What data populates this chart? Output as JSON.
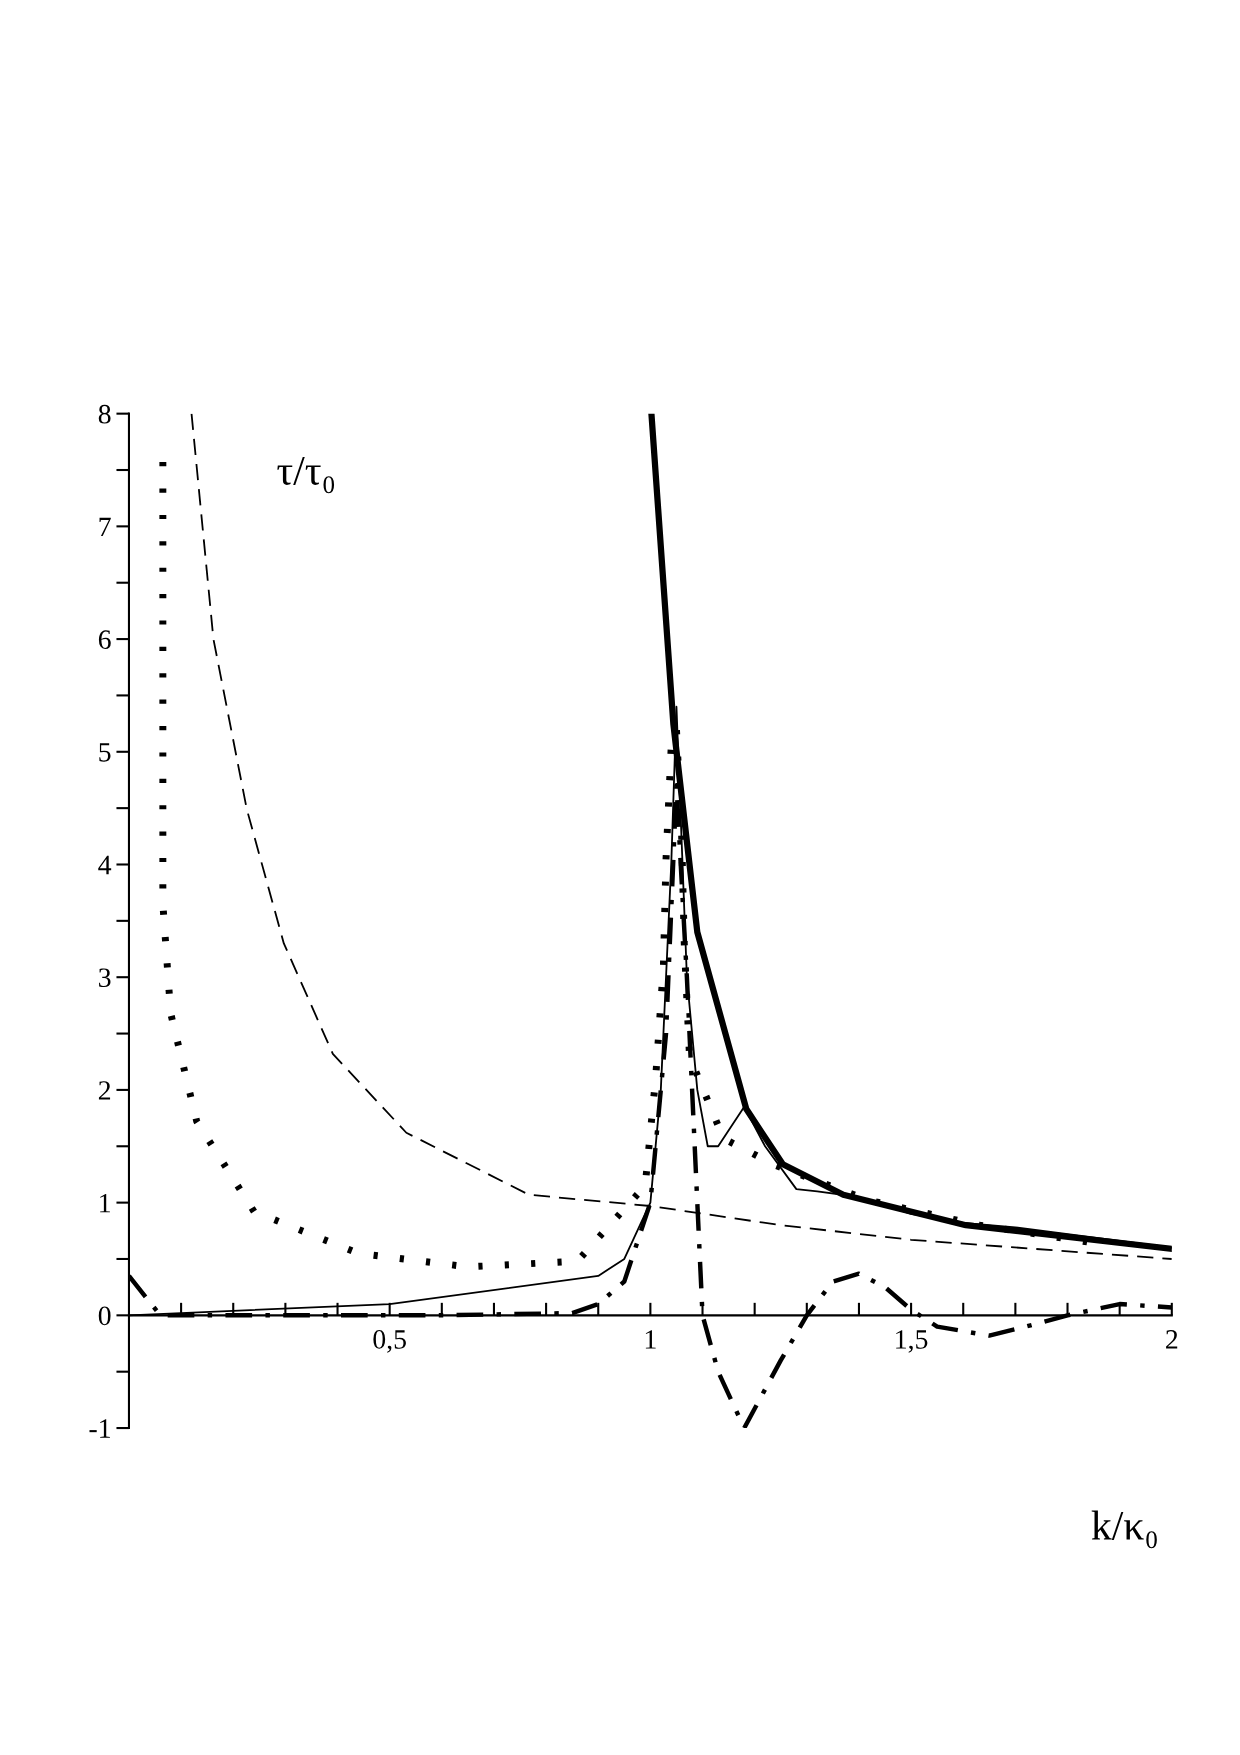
{
  "chart_data": {
    "type": "line",
    "xlabel": "k/κ₀",
    "ylabel": "τ/τ₀",
    "xlim": [
      0,
      2
    ],
    "ylim": [
      -1,
      8
    ],
    "xticks": [
      {
        "value": 0.1,
        "label": null
      },
      {
        "value": 0.2,
        "label": null
      },
      {
        "value": 0.3,
        "label": null
      },
      {
        "value": 0.4,
        "label": null
      },
      {
        "value": 0.5,
        "label": "0,5"
      },
      {
        "value": 0.6,
        "label": null
      },
      {
        "value": 0.7,
        "label": null
      },
      {
        "value": 0.8,
        "label": null
      },
      {
        "value": 0.9,
        "label": null
      },
      1,
      {
        "value": 1.1,
        "label": null
      },
      {
        "value": 1.2,
        "label": null
      },
      {
        "value": 1.3,
        "label": null
      },
      {
        "value": 1.4,
        "label": null
      },
      {
        "value": 1.5,
        "label": "1,5"
      },
      {
        "value": 1.6,
        "label": null
      },
      {
        "value": 1.7,
        "label": null
      },
      {
        "value": 1.8,
        "label": null
      },
      {
        "value": 1.9,
        "label": null
      },
      2
    ],
    "yticks": [
      -1,
      {
        "value": -0.5,
        "label": null
      },
      0,
      {
        "value": 0.5,
        "label": null
      },
      1,
      {
        "value": 1.5,
        "label": null
      },
      2,
      {
        "value": 2.5,
        "label": null
      },
      3,
      {
        "value": 3.5,
        "label": null
      },
      4,
      {
        "value": 4.5,
        "label": null
      },
      5,
      {
        "value": 5.5,
        "label": null
      },
      6,
      {
        "value": 6.5,
        "label": null
      },
      7,
      {
        "value": 7.5,
        "label": null
      },
      8
    ],
    "grid": false,
    "series": [
      {
        "color": "#000000",
        "line_style": "dashed",
        "x": [
          0.12,
          0.162,
          0.226,
          0.297,
          0.391,
          0.532,
          0.767,
          1.0,
          1.25,
          1.5,
          2.0
        ],
        "values": [
          8.0,
          6.0,
          4.49,
          3.3,
          2.32,
          1.62,
          1.07,
          0.97,
          0.8,
          0.67,
          0.5
        ]
      },
      {
        "color": "#000000",
        "line_style": "solid",
        "x": [
          1.002,
          1.044,
          1.09,
          1.184,
          1.254,
          1.37,
          1.605,
          2.0
        ],
        "values": [
          8.0,
          5.25,
          3.4,
          1.83,
          1.34,
          1.07,
          0.8,
          0.59
        ]
      },
      {
        "color": "#000000",
        "line_style": "solid",
        "x": [
          0.0,
          0.5,
          0.9,
          0.95,
          1.0,
          1.02,
          1.04,
          1.05,
          1.07,
          1.09,
          1.11,
          1.13,
          1.18,
          1.22,
          1.28,
          1.32,
          1.4,
          1.5,
          1.6,
          1.7,
          2.0
        ],
        "values": [
          0.0,
          0.1,
          0.35,
          0.5,
          1.0,
          2.0,
          4.0,
          5.4,
          3.0,
          2.0,
          1.5,
          1.5,
          1.85,
          1.5,
          1.12,
          1.1,
          1.05,
          0.9,
          0.82,
          0.78,
          0.6
        ]
      },
      {
        "color": "#000000",
        "line_style": "dashdot",
        "x": [
          0.0,
          0.06,
          0.3,
          0.6,
          0.85,
          0.9,
          0.95,
          1.0,
          1.03,
          1.05,
          1.07,
          1.09,
          1.1,
          1.13,
          1.18,
          1.25,
          1.3,
          1.35,
          1.4,
          1.45,
          1.5,
          1.55,
          1.65,
          1.72,
          1.8,
          1.9,
          2.0
        ],
        "values": [
          0.35,
          0.0,
          0.0,
          0.0,
          0.02,
          0.1,
          0.3,
          1.0,
          2.5,
          4.7,
          3.0,
          1.0,
          0.0,
          -0.5,
          -1.0,
          -0.4,
          0.0,
          0.3,
          0.37,
          0.25,
          0.05,
          -0.1,
          -0.18,
          -0.1,
          0.0,
          0.1,
          0.07
        ]
      },
      {
        "color": "#000000",
        "line_style": "dotted",
        "x": [
          0.065,
          0.065,
          0.065,
          0.065,
          0.065,
          0.08,
          0.13,
          0.24,
          0.44,
          0.65,
          0.86,
          0.99,
          1.01,
          1.025,
          1.03,
          1.04,
          1.05,
          1.06,
          1.065,
          1.075,
          1.14,
          1.24,
          1.42,
          1.63,
          1.84
        ],
        "values": [
          7.57,
          6.58,
          5.6,
          4.62,
          3.65,
          2.68,
          1.72,
          0.92,
          0.55,
          0.43,
          0.48,
          1.15,
          2.1,
          3.1,
          4.05,
          5.05,
          5.2,
          4.25,
          3.3,
          2.3,
          1.57,
          1.33,
          1.02,
          0.8,
          0.65
        ]
      }
    ]
  }
}
